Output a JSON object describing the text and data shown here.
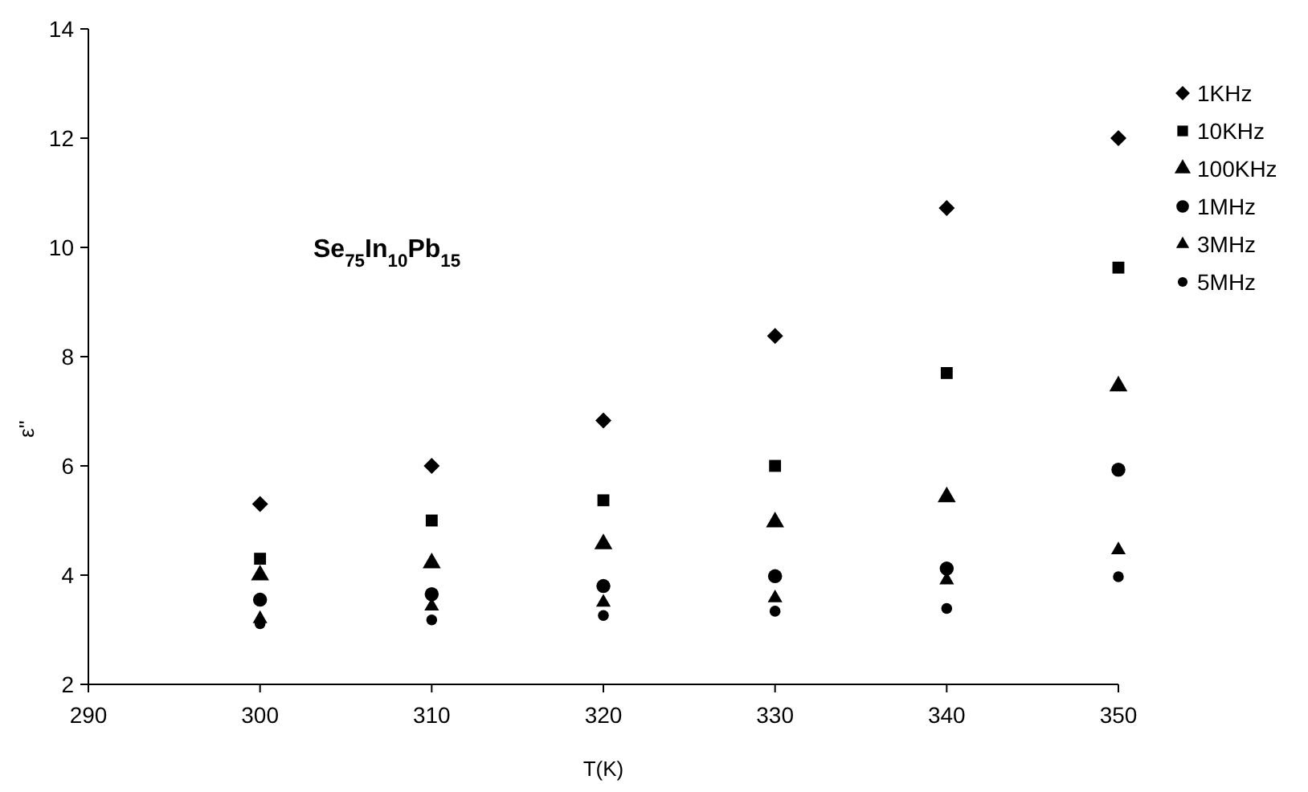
{
  "chart_data": {
    "type": "scatter",
    "xlabel": "T(K)",
    "ylabel": "ε''",
    "annotations": [
      "Se$_{75}$In$_{10}$Pb$_{15}$"
    ],
    "x": [
      300,
      310,
      320,
      330,
      340,
      350
    ],
    "xlim": [
      290,
      350
    ],
    "xticks": [
      290,
      300,
      310,
      320,
      330,
      340,
      350
    ],
    "ylim": [
      2,
      14
    ],
    "yticks": [
      2,
      4,
      6,
      8,
      10,
      12,
      14
    ],
    "grid": false,
    "legend": "right",
    "series": [
      {
        "name": "1KHz",
        "color": "#000000",
        "marker": "diamond",
        "values": [
          5.3,
          6.0,
          6.83,
          8.38,
          10.72,
          12.0
        ]
      },
      {
        "name": "10KHz",
        "color": "#000000",
        "marker": "square",
        "values": [
          4.3,
          5.0,
          5.37,
          6.0,
          7.7,
          9.63
        ]
      },
      {
        "name": "100KHz",
        "color": "#000000",
        "marker": "triangle",
        "values": [
          4.0,
          4.22,
          4.57,
          4.97,
          5.43,
          7.46
        ]
      },
      {
        "name": "1MHz",
        "color": "#000000",
        "marker": "circle",
        "values": [
          3.55,
          3.65,
          3.8,
          3.98,
          4.12,
          5.93
        ]
      },
      {
        "name": "3MHz",
        "color": "#000000",
        "marker": "triangle",
        "values": [
          3.2,
          3.43,
          3.5,
          3.58,
          3.91,
          4.46
        ]
      },
      {
        "name": "5MHz",
        "color": "#000000",
        "marker": "circle",
        "values": [
          3.11,
          3.18,
          3.26,
          3.34,
          3.39,
          3.97
        ]
      }
    ]
  }
}
